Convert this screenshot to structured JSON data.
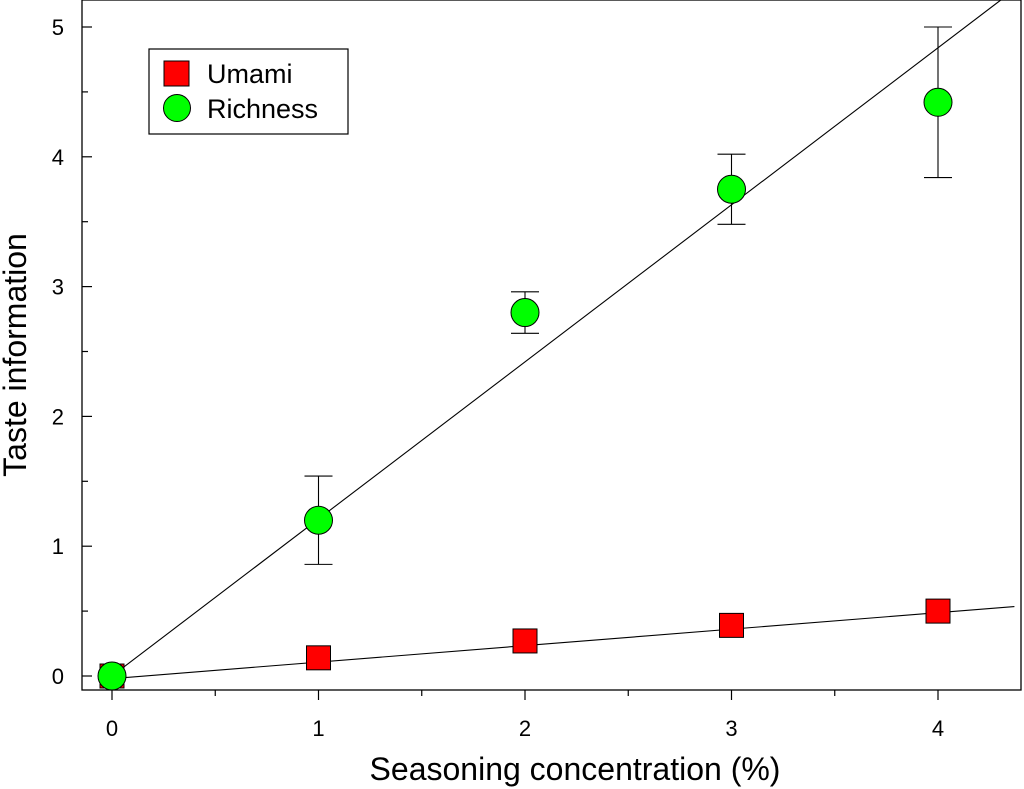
{
  "chart_data": {
    "type": "scatter",
    "title": "",
    "xlabel": "Seasoning concentration (%)",
    "ylabel": "Taste information",
    "xlim": [
      -0.1,
      4.4
    ],
    "ylim": [
      -0.1,
      5.2
    ],
    "xticks": [
      0,
      1,
      2,
      3,
      4
    ],
    "yticks": [
      0,
      1,
      2,
      3,
      4,
      5
    ],
    "x_tick_labels": [
      "0",
      "1",
      "2",
      "3",
      "4"
    ],
    "y_tick_labels": [
      "0",
      "1",
      "2",
      "3",
      "4",
      "5"
    ],
    "grid": false,
    "legend_position": "top-left",
    "series": [
      {
        "name": "Umami",
        "marker": "square",
        "color": "#ff0000",
        "x": [
          0,
          1,
          2,
          3,
          4
        ],
        "values": [
          0.0,
          0.14,
          0.27,
          0.39,
          0.5
        ],
        "fit_line": {
          "slope": 0.127,
          "intercept": -0.02
        }
      },
      {
        "name": "Richness",
        "marker": "circle",
        "color": "#00ff00",
        "x": [
          0,
          1,
          2,
          3,
          4
        ],
        "values": [
          0.0,
          1.2,
          2.8,
          3.75,
          4.42
        ],
        "error": [
          0.0,
          0.34,
          0.16,
          0.27,
          0.58
        ],
        "fit_line": {
          "slope": 1.21,
          "intercept": 0.0
        }
      }
    ]
  }
}
